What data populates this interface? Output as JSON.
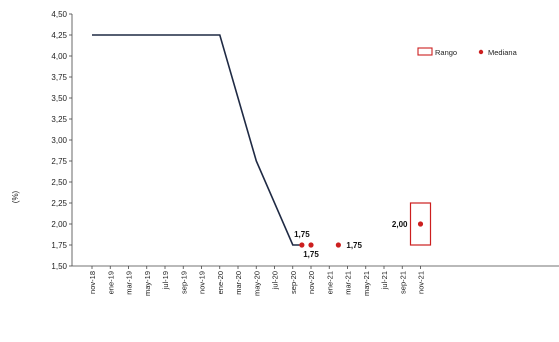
{
  "chart_data": {
    "type": "line",
    "ylabel": "(%)",
    "ylim": [
      1.5,
      4.5
    ],
    "yticks": [
      "4,50",
      "4,25",
      "4,00",
      "3,75",
      "3,50",
      "3,25",
      "3,00",
      "2,75",
      "2,50",
      "2,25",
      "2,00",
      "1,75",
      "1,50"
    ],
    "ytick_values": [
      4.5,
      4.25,
      4.0,
      3.75,
      3.5,
      3.25,
      3.0,
      2.75,
      2.5,
      2.25,
      2.0,
      1.75,
      1.5
    ],
    "xticks": [
      "nov-18",
      "ene-19",
      "mar-19",
      "may-19",
      "jul-19",
      "sep-19",
      "nov-19",
      "ene-20",
      "mar-20",
      "may-20",
      "jul-20",
      "sep-20",
      "nov-20",
      "ene-21",
      "mar-21",
      "may-21",
      "jul-21",
      "sep-21",
      "nov-21"
    ],
    "grid": false,
    "legend": {
      "placement": "top-right",
      "items": [
        {
          "label": "Rango",
          "marker": "box",
          "color": "#cc1f1f"
        },
        {
          "label": "Mediana",
          "marker": "dot",
          "color": "#cc1f1f"
        }
      ]
    },
    "series": [
      {
        "color": "#1f2a44",
        "x": [
          "nov-18",
          "jul-19",
          "ene-20",
          "may-20",
          "sep-20",
          "oct-20"
        ],
        "values": [
          4.25,
          4.25,
          4.25,
          2.75,
          1.75,
          1.75
        ]
      }
    ],
    "median_points": [
      {
        "x": "oct-20",
        "value": 1.75,
        "label": "1,75",
        "label_pos": "above"
      },
      {
        "x": "nov-20",
        "value": 1.75,
        "label": "1,75",
        "label_pos": "below"
      },
      {
        "x": "feb-21",
        "value": 1.75,
        "label": "1,75",
        "label_pos": "right"
      },
      {
        "x": "nov-21",
        "value": 2.0,
        "label": "2,00",
        "label_pos": "left"
      }
    ],
    "range_box": {
      "x": "nov-21",
      "low": 1.75,
      "high": 2.25
    }
  }
}
